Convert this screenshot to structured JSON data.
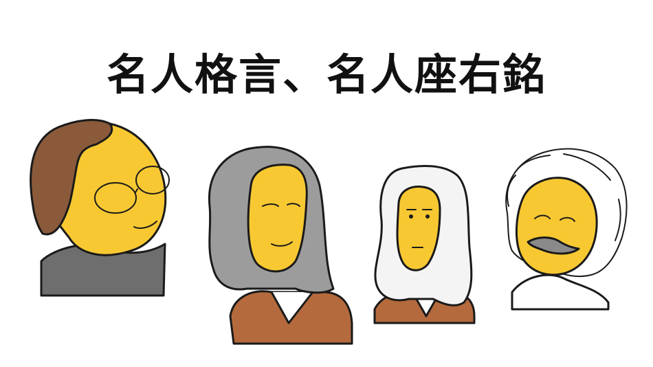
{
  "title": "名人格言、名人座右銘",
  "portraits": [
    {
      "icon": "portrait-glasses-man-icon"
    },
    {
      "icon": "portrait-newton-icon"
    },
    {
      "icon": "portrait-wigged-judge-icon"
    },
    {
      "icon": "portrait-einstein-icon"
    }
  ],
  "colors": {
    "skin": "#f7c832",
    "wig_gray": "#9c9c9c",
    "hair_brown": "#8a5a3b",
    "coat_brown": "#b46a3c",
    "sweater_gray": "#6e6e6e",
    "ink": "#1a1a1a"
  }
}
